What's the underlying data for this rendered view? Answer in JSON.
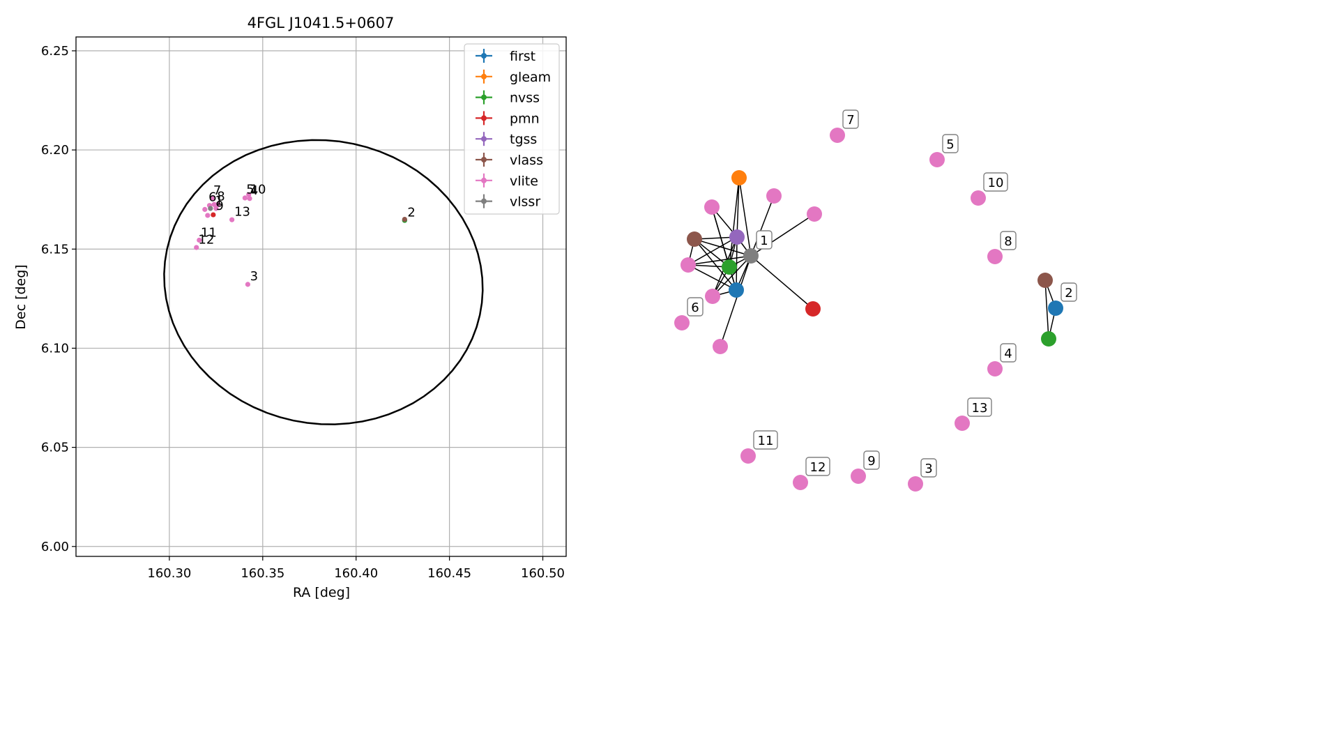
{
  "chart_data": [
    {
      "type": "scatter",
      "title": "4FGL J1041.5+0607",
      "xlabel": "RA [deg]",
      "ylabel": "Dec [deg]",
      "xlim": [
        160.25,
        160.5125
      ],
      "ylim": [
        5.995,
        6.257
      ],
      "xticks": [
        "160.30",
        "160.35",
        "160.40",
        "160.45",
        "160.50"
      ],
      "xtick_values": [
        160.3,
        160.35,
        160.4,
        160.45,
        160.5
      ],
      "yticks": [
        "6.00",
        "6.05",
        "6.10",
        "6.15",
        "6.20",
        "6.25"
      ],
      "ytick_values": [
        6.0,
        6.05,
        6.1,
        6.15,
        6.2,
        6.25
      ],
      "grid": true,
      "legend_position": "top-right",
      "ellipse": {
        "center": [
          160.3825,
          6.1333
        ],
        "semi_axes": [
          0.0855,
          0.0715
        ],
        "rotation_deg": -7,
        "color": "#000000"
      },
      "series": [
        {
          "name": "first",
          "color": "#1f77b4",
          "points": [
            [
              160.426,
              6.1645
            ]
          ]
        },
        {
          "name": "gleam",
          "color": "#ff7f0e",
          "points": []
        },
        {
          "name": "nvss",
          "color": "#2ca02c",
          "points": [
            [
              160.426,
              6.1645
            ]
          ]
        },
        {
          "name": "pmn",
          "color": "#d62728",
          "points": [
            [
              160.3235,
              6.1673
            ]
          ]
        },
        {
          "name": "tgss",
          "color": "#9467bd",
          "points": []
        },
        {
          "name": "vlass",
          "color": "#8c564b",
          "points": [
            [
              160.426,
              6.165
            ]
          ]
        },
        {
          "name": "vlite",
          "color": "#e377c2",
          "points": [
            [
              160.323,
              6.1755
            ],
            [
              160.319,
              6.17
            ],
            [
              160.3215,
              6.172
            ],
            [
              160.3205,
              6.167
            ],
            [
              160.326,
              6.1725
            ],
            [
              160.325,
              6.1705
            ],
            [
              160.3405,
              6.1758
            ],
            [
              160.343,
              6.1755
            ],
            [
              160.3425,
              6.1775
            ],
            [
              160.3335,
              6.1648
            ],
            [
              160.316,
              6.1545
            ],
            [
              160.3145,
              6.1508
            ],
            [
              160.342,
              6.1322
            ],
            [
              160.324,
              6.1725
            ]
          ]
        },
        {
          "name": "vlssr",
          "color": "#7f7f7f",
          "points": [
            [
              160.322,
              6.1705
            ]
          ]
        }
      ],
      "annotations": [
        {
          "text": "1",
          "at": [
            160.3245,
            6.1725
          ]
        },
        {
          "text": "2",
          "at": [
            160.4275,
            6.1665
          ]
        },
        {
          "text": "3",
          "at": [
            160.3432,
            6.1343
          ]
        },
        {
          "text": "4",
          "at": [
            160.3433,
            6.1775
          ]
        },
        {
          "text": "5",
          "at": [
            160.3412,
            6.178
          ]
        },
        {
          "text": "6",
          "at": [
            160.321,
            6.1742
          ]
        },
        {
          "text": "7",
          "at": [
            160.3235,
            6.1775
          ]
        },
        {
          "text": "8",
          "at": [
            160.3255,
            6.1745
          ]
        },
        {
          "text": "9",
          "at": [
            160.3248,
            6.1698
          ]
        },
        {
          "text": "10",
          "at": [
            160.3432,
            6.178
          ]
        },
        {
          "text": "11",
          "at": [
            160.3168,
            6.1563
          ]
        },
        {
          "text": "12",
          "at": [
            160.3155,
            6.1528
          ]
        },
        {
          "text": "13",
          "at": [
            160.3348,
            6.1668
          ]
        }
      ]
    },
    {
      "type": "network",
      "nodes": [
        {
          "id": "n_gleam",
          "color": "#ff7f0e",
          "pos": [
            1060,
            255
          ]
        },
        {
          "id": "n_tgss",
          "color": "#9467bd",
          "pos": [
            1057,
            340
          ]
        },
        {
          "id": "n_vlssr",
          "color": "#7f7f7f",
          "pos": [
            1077,
            367
          ]
        },
        {
          "id": "n_nvss1",
          "color": "#2ca02c",
          "pos": [
            1046,
            383
          ]
        },
        {
          "id": "n_first1",
          "color": "#1f77b4",
          "pos": [
            1056,
            416
          ]
        },
        {
          "id": "n_vlass1",
          "color": "#8c564b",
          "pos": [
            996,
            343
          ]
        },
        {
          "id": "n_pmn",
          "color": "#d62728",
          "pos": [
            1166,
            443
          ]
        },
        {
          "id": "n_v_a",
          "color": "#e377c2",
          "pos": [
            1021,
            297
          ]
        },
        {
          "id": "n_v_b",
          "color": "#e377c2",
          "pos": [
            1110,
            281
          ]
        },
        {
          "id": "n_v_c",
          "color": "#e377c2",
          "pos": [
            1168,
            307
          ]
        },
        {
          "id": "n_v_d",
          "color": "#e377c2",
          "pos": [
            987,
            380
          ]
        },
        {
          "id": "n_v_e",
          "color": "#e377c2",
          "pos": [
            1022,
            425
          ]
        },
        {
          "id": "n_v_f",
          "color": "#e377c2",
          "pos": [
            1033,
            497
          ]
        },
        {
          "id": "n_v6",
          "color": "#e377c2",
          "pos": [
            978,
            463
          ]
        },
        {
          "id": "n_v7",
          "color": "#e377c2",
          "pos": [
            1201,
            194
          ]
        },
        {
          "id": "n_v5",
          "color": "#e377c2",
          "pos": [
            1344,
            229
          ]
        },
        {
          "id": "n_v10",
          "color": "#e377c2",
          "pos": [
            1403,
            284
          ]
        },
        {
          "id": "n_v8",
          "color": "#e377c2",
          "pos": [
            1427,
            368
          ]
        },
        {
          "id": "n_vlass2",
          "color": "#8c564b",
          "pos": [
            1499,
            402
          ]
        },
        {
          "id": "n_first2",
          "color": "#1f77b4",
          "pos": [
            1514,
            442
          ]
        },
        {
          "id": "n_nvss2",
          "color": "#2ca02c",
          "pos": [
            1504,
            486
          ]
        },
        {
          "id": "n_v4",
          "color": "#e377c2",
          "pos": [
            1427,
            529
          ]
        },
        {
          "id": "n_v13",
          "color": "#e377c2",
          "pos": [
            1380,
            607
          ]
        },
        {
          "id": "n_v11",
          "color": "#e377c2",
          "pos": [
            1073,
            654
          ]
        },
        {
          "id": "n_v12",
          "color": "#e377c2",
          "pos": [
            1148,
            692
          ]
        },
        {
          "id": "n_v9",
          "color": "#e377c2",
          "pos": [
            1231,
            683
          ]
        },
        {
          "id": "n_v3",
          "color": "#e377c2",
          "pos": [
            1313,
            694
          ]
        }
      ],
      "edges": [
        [
          "n_gleam",
          "n_tgss"
        ],
        [
          "n_gleam",
          "n_vlssr"
        ],
        [
          "n_gleam",
          "n_nvss1"
        ],
        [
          "n_tgss",
          "n_vlssr"
        ],
        [
          "n_tgss",
          "n_nvss1"
        ],
        [
          "n_tgss",
          "n_first1"
        ],
        [
          "n_tgss",
          "n_vlass1"
        ],
        [
          "n_tgss",
          "n_v_a"
        ],
        [
          "n_tgss",
          "n_v_d"
        ],
        [
          "n_tgss",
          "n_v_e"
        ],
        [
          "n_vlssr",
          "n_nvss1"
        ],
        [
          "n_vlssr",
          "n_first1"
        ],
        [
          "n_vlssr",
          "n_vlass1"
        ],
        [
          "n_vlssr",
          "n_v_b"
        ],
        [
          "n_vlssr",
          "n_v_c"
        ],
        [
          "n_vlssr",
          "n_pmn"
        ],
        [
          "n_vlssr",
          "n_v_d"
        ],
        [
          "n_vlssr",
          "n_v_e"
        ],
        [
          "n_vlssr",
          "n_v_f"
        ],
        [
          "n_nvss1",
          "n_first1"
        ],
        [
          "n_nvss1",
          "n_vlass1"
        ],
        [
          "n_nvss1",
          "n_v_a"
        ],
        [
          "n_nvss1",
          "n_v_d"
        ],
        [
          "n_nvss1",
          "n_v_e"
        ],
        [
          "n_first1",
          "n_vlass1"
        ],
        [
          "n_first1",
          "n_v_d"
        ],
        [
          "n_first1",
          "n_v_e"
        ],
        [
          "n_first1",
          "n_v_a"
        ],
        [
          "n_vlass1",
          "n_v_d"
        ],
        [
          "n_vlass2",
          "n_first2"
        ],
        [
          "n_vlass2",
          "n_nvss2"
        ],
        [
          "n_first2",
          "n_nvss2"
        ]
      ],
      "labels": [
        {
          "text": "1",
          "node": "n_vlssr"
        },
        {
          "text": "6",
          "node": "n_v6"
        },
        {
          "text": "7",
          "node": "n_v7"
        },
        {
          "text": "5",
          "node": "n_v5"
        },
        {
          "text": "10",
          "node": "n_v10"
        },
        {
          "text": "8",
          "node": "n_v8"
        },
        {
          "text": "2",
          "node": "n_first2"
        },
        {
          "text": "4",
          "node": "n_v4"
        },
        {
          "text": "13",
          "node": "n_v13"
        },
        {
          "text": "11",
          "node": "n_v11"
        },
        {
          "text": "12",
          "node": "n_v12"
        },
        {
          "text": "9",
          "node": "n_v9"
        },
        {
          "text": "3",
          "node": "n_v3"
        }
      ]
    }
  ]
}
